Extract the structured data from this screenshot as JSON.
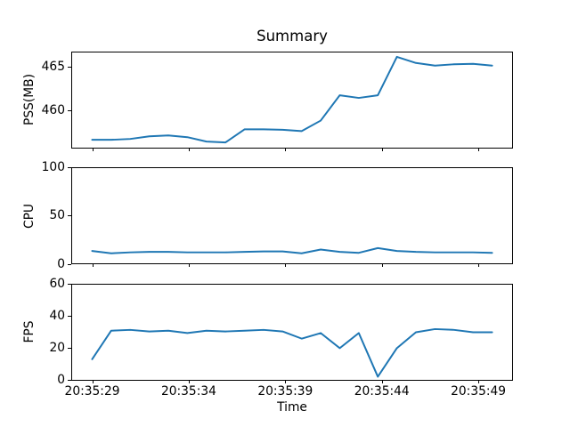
{
  "chart_data": {
    "type": "line",
    "title": "Summary",
    "xlabel": "Time",
    "line_color": "#1f77b4",
    "axis_color": "#000000",
    "x_tick_labels": [
      "20:35:29",
      "20:35:34",
      "20:35:39",
      "20:35:44",
      "20:35:49"
    ],
    "x_tick_seconds": [
      29,
      34,
      39,
      44,
      49
    ],
    "x_start_second": 29.0,
    "x_end_second": 49.8,
    "legend": "none",
    "grid": false,
    "subplots": [
      {
        "ylabel": "PSS(MB)",
        "ylim": [
          455.8,
          466.7
        ],
        "ytick_labels": [
          "460",
          "465"
        ],
        "ytick_values": [
          460,
          465
        ],
        "values": [
          456.7,
          456.7,
          456.8,
          457.1,
          457.2,
          457.0,
          456.5,
          456.4,
          457.9,
          457.9,
          457.85,
          457.7,
          458.9,
          461.8,
          461.5,
          461.8,
          466.2,
          465.5,
          465.2,
          465.35,
          465.4,
          465.2
        ]
      },
      {
        "ylabel": "CPU",
        "ylim": [
          0,
          100
        ],
        "ytick_labels": [
          "0",
          "50",
          "100"
        ],
        "ytick_values": [
          0,
          50,
          100
        ],
        "values": [
          13,
          10.5,
          11.5,
          12,
          12,
          11.5,
          11.5,
          11.5,
          12,
          12.5,
          12.5,
          10.5,
          14.5,
          12,
          11,
          16,
          13,
          12,
          11.5,
          11.5,
          11.5,
          11
        ]
      },
      {
        "ylabel": "FPS",
        "ylim": [
          0,
          60
        ],
        "ytick_labels": [
          "0",
          "20",
          "40",
          "60"
        ],
        "ytick_values": [
          0,
          20,
          40,
          60
        ],
        "values": [
          13,
          31,
          31.5,
          30.5,
          31,
          29.5,
          31,
          30.5,
          31,
          31.5,
          30.5,
          26,
          29.5,
          20,
          29.5,
          2,
          20,
          30,
          32,
          31.5,
          30,
          30
        ]
      }
    ]
  }
}
